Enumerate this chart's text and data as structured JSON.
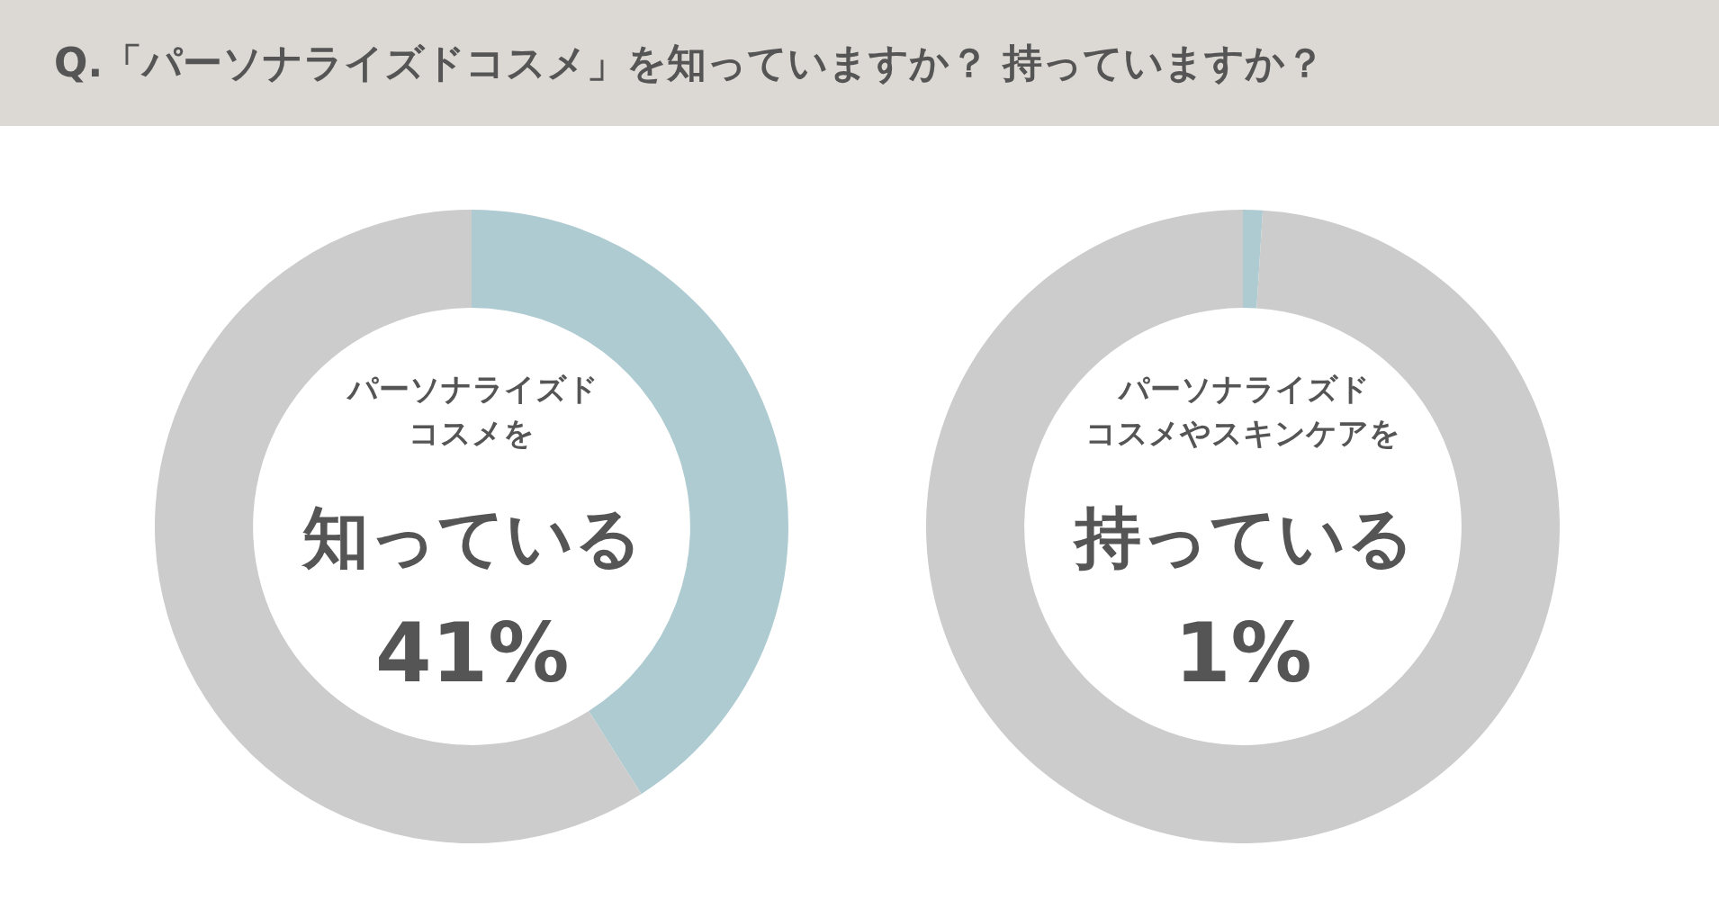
{
  "chart_data": [
    {
      "type": "donut",
      "title": "Q.「パーソナライズドコスメ」を知っていますか？ 持っていますか？",
      "categories": [
        null,
        null
      ],
      "values": [
        41,
        59
      ],
      "colors": [
        "#aecbd1",
        "#cccccc"
      ],
      "annotations": [
        "パーソナライズド",
        "コスメを",
        "知っている",
        "41%"
      ]
    },
    {
      "type": "donut",
      "categories": [
        null,
        null
      ],
      "values": [
        1,
        99
      ],
      "colors": [
        "#aecbd1",
        "#cccccc"
      ],
      "annotations": [
        "パーソナライズド",
        "コスメやスキンケアを",
        "持っている",
        "1%"
      ]
    }
  ]
}
